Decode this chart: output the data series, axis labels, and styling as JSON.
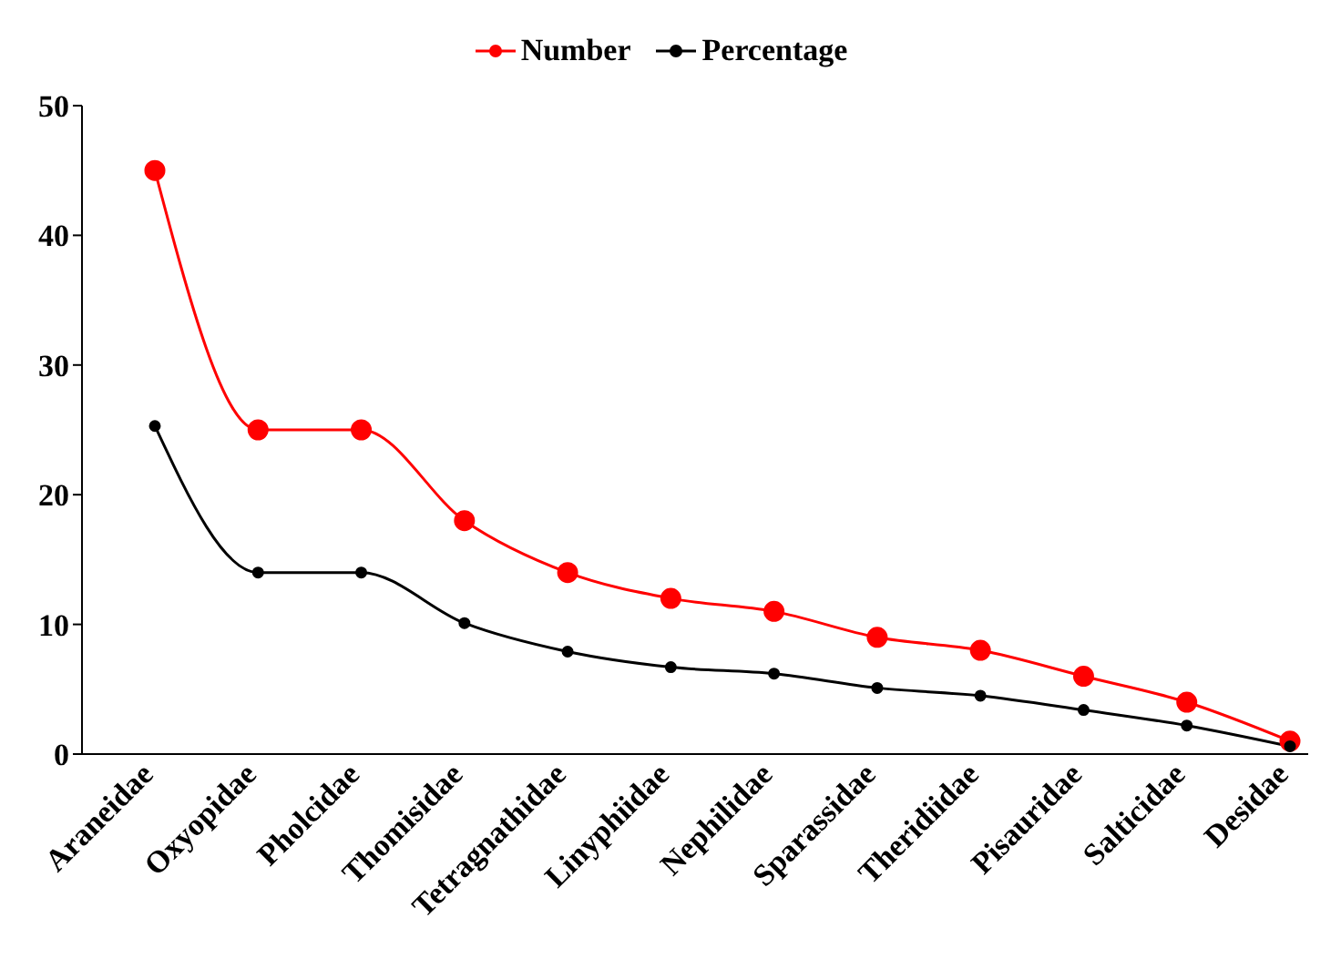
{
  "chart_data": {
    "type": "line",
    "categories": [
      "Araneidae",
      "Oxyopidae",
      "Pholcidae",
      "Thomisidae",
      "Tetragnathidae",
      "Linyphiidae",
      "Nephilidae",
      "Sparassidae",
      "Theridiidae",
      "Pisauridae",
      "Salticidae",
      "Desidae"
    ],
    "series": [
      {
        "name": "Number",
        "color": "#ff0000",
        "values": [
          45,
          25,
          25,
          18,
          14,
          12,
          11,
          9,
          8,
          6,
          4,
          1
        ]
      },
      {
        "name": "Percentage",
        "color": "#000000",
        "values": [
          25.3,
          14,
          14,
          10.1,
          7.9,
          6.7,
          6.2,
          5.1,
          4.5,
          3.4,
          2.2,
          0.6
        ]
      }
    ],
    "ylim": [
      0,
      50
    ],
    "yticks": [
      0,
      10,
      20,
      30,
      40,
      50
    ],
    "grid": false,
    "legend": "top",
    "marker": "circle",
    "line_style": "solid"
  }
}
